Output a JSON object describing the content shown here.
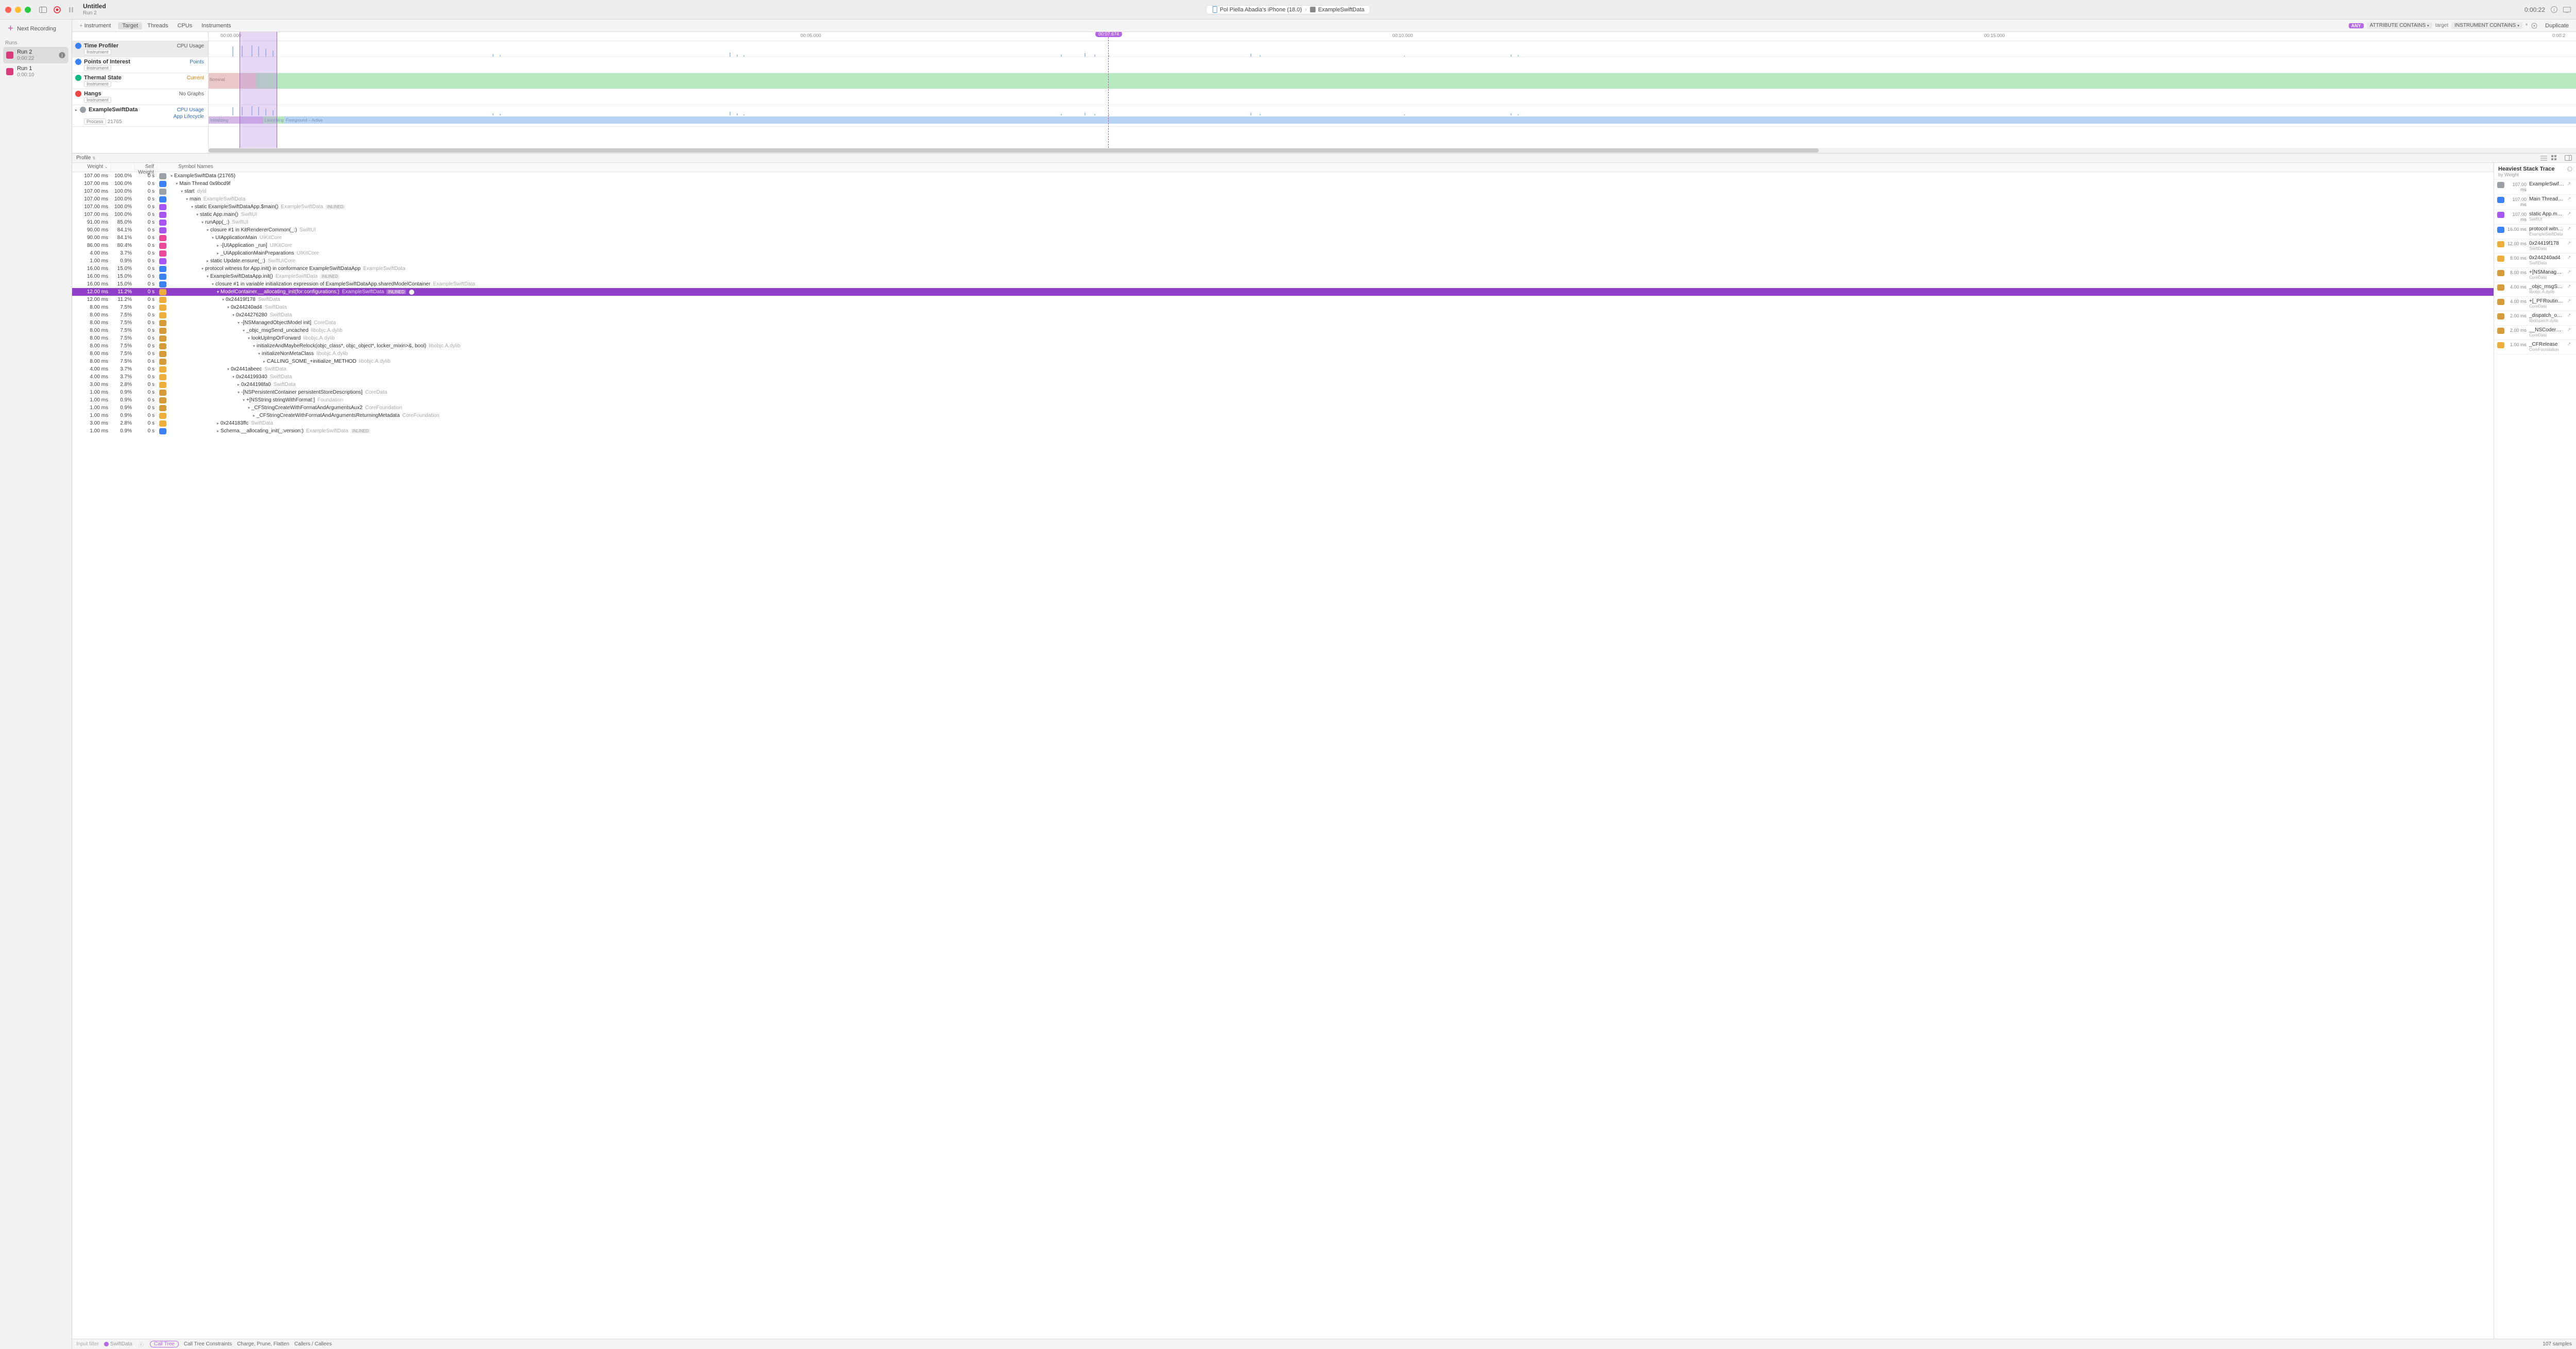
{
  "titlebar": {
    "title": "Untitled",
    "subtitle": "Run 2",
    "device": "Pol Piella Abadia's iPhone (18.0)",
    "process": "ExampleSwiftData",
    "elapsed": "0:00:22"
  },
  "sidebar": {
    "next_recording": "Next Recording",
    "runs_header": "Runs",
    "runs": [
      {
        "name": "Run 2",
        "duration": "0:00:22",
        "selected": true
      },
      {
        "name": "Run 1",
        "duration": "0:00:10",
        "selected": false
      }
    ],
    "chip_color": "#d83a7a"
  },
  "filterbar": {
    "add": "Instrument",
    "tabs": [
      "Target",
      "Threads",
      "CPUs",
      "Instruments"
    ],
    "active_tab": 0,
    "any": "ANY",
    "attr_contains": "ATTRIBUTE CONTAINS",
    "target_text": "target",
    "instr_contains": "INSTRUMENT CONTAINS",
    "duplicate": "Duplicate"
  },
  "timeline": {
    "ruler": [
      {
        "label": "00:00.000",
        "pct": 0.5
      },
      {
        "label": "00:05.000",
        "pct": 25
      },
      {
        "label": "00:10.000",
        "pct": 50
      },
      {
        "label": "00:15.000",
        "pct": 75
      },
      {
        "label": "0:00:2",
        "pct": 99
      }
    ],
    "selection": {
      "left_pct": 1.3,
      "width_pct": 1.6
    },
    "playhead": {
      "pct": 38,
      "label": "00:07.674"
    },
    "tracks": [
      {
        "kind": "profiler",
        "name": "Time Profiler",
        "tag": "Instrument",
        "right": "CPU Usage",
        "right_color": "#555",
        "selected": true,
        "height": 31,
        "bullet_bg": "#3b82f6",
        "bullet_fg": "#fff"
      },
      {
        "kind": "points",
        "name": "Points of Interest",
        "tag": "Instrument",
        "right": "Points",
        "right_color": "#2f6bd1",
        "height": 31,
        "bullet_bg": "#3b82f6",
        "bullet_fg": "#fff"
      },
      {
        "kind": "thermal",
        "name": "Thermal State",
        "tag": "Instrument",
        "right": "Current",
        "right_color": "#e27a00",
        "height": 31,
        "bullet_bg": "#10b981",
        "bullet_fg": "#fff"
      },
      {
        "kind": "hangs",
        "name": "Hangs",
        "tag": "Instrument",
        "right": "No Graphs",
        "right_color": "#555",
        "height": 31,
        "bullet_bg": "#ef4444",
        "bullet_fg": "#fff"
      },
      {
        "kind": "process",
        "name": "ExampleSwiftData",
        "tag": "Process",
        "pid": "21765",
        "right": "CPU Usage",
        "sub": "App Lifecycle",
        "right_color": "#2f6bd1",
        "height": 42,
        "bullet_bg": "#9aa0a6",
        "bullet_fg": "#fff"
      }
    ],
    "cpu_bars": [
      {
        "x": 1.0,
        "h": 90
      },
      {
        "x": 1.4,
        "h": 95
      },
      {
        "x": 1.8,
        "h": 98
      },
      {
        "x": 2.1,
        "h": 92
      },
      {
        "x": 2.4,
        "h": 70
      },
      {
        "x": 2.7,
        "h": 55
      },
      {
        "x": 12,
        "h": 22
      },
      {
        "x": 12.3,
        "h": 14
      },
      {
        "x": 22,
        "h": 38
      },
      {
        "x": 22.3,
        "h": 20
      },
      {
        "x": 22.6,
        "h": 12
      },
      {
        "x": 36,
        "h": 18
      },
      {
        "x": 37,
        "h": 30
      },
      {
        "x": 37.4,
        "h": 16
      },
      {
        "x": 38,
        "h": 12
      },
      {
        "x": 44,
        "h": 26
      },
      {
        "x": 44.4,
        "h": 14
      },
      {
        "x": 50.5,
        "h": 10
      },
      {
        "x": 55,
        "h": 20
      },
      {
        "x": 55.3,
        "h": 12
      }
    ],
    "lifecycle": [
      {
        "label": "Initializing",
        "left_pct": 0,
        "width_pct": 2.3,
        "bg": "#d4b8e8"
      },
      {
        "label": "Launching",
        "left_pct": 2.3,
        "width_pct": 0.9,
        "bg": "#b8e8c0"
      },
      {
        "label": "Foreground – Active",
        "left_pct": 3.2,
        "width_pct": 96.8,
        "bg": "#b8d4f3"
      }
    ],
    "thermal_label": "Nominal"
  },
  "profile_strip": {
    "label": "Profile"
  },
  "calltree": {
    "columns": [
      "Weight",
      "",
      "Self Weight",
      "",
      "Symbol Names"
    ],
    "selected_index": 15,
    "rows": [
      {
        "w": "107.00 ms",
        "p": "100.0%",
        "s": "0 s",
        "ic": "bg-gray",
        "ind": 0,
        "tri": "v",
        "sym": "ExampleSwiftData (21765)",
        "lib": ""
      },
      {
        "w": "107.00 ms",
        "p": "100.0%",
        "s": "0 s",
        "ic": "bg-blue",
        "ind": 1,
        "tri": "v",
        "sym": "Main Thread  0x9bcd9f",
        "lib": ""
      },
      {
        "w": "107.00 ms",
        "p": "100.0%",
        "s": "0 s",
        "ic": "bg-gray",
        "ind": 2,
        "tri": "v",
        "sym": "start",
        "lib": "dyld"
      },
      {
        "w": "107.00 ms",
        "p": "100.0%",
        "s": "0 s",
        "ic": "bg-blue",
        "ind": 3,
        "tri": "v",
        "sym": "main",
        "lib": "ExampleSwiftData"
      },
      {
        "w": "107.00 ms",
        "p": "100.0%",
        "s": "0 s",
        "ic": "bg-purple",
        "ind": 4,
        "tri": "v",
        "sym": "static ExampleSwiftDataApp.$main()",
        "lib": "ExampleSwiftData",
        "inl": true
      },
      {
        "w": "107.00 ms",
        "p": "100.0%",
        "s": "0 s",
        "ic": "bg-purple",
        "ind": 5,
        "tri": "v",
        "sym": "static App.main()",
        "lib": "SwiftUI"
      },
      {
        "w": "91.00 ms",
        "p": "85.0%",
        "s": "0 s",
        "ic": "bg-purple",
        "ind": 6,
        "tri": "v",
        "sym": "runApp<A>(_:)",
        "lib": "SwiftUI"
      },
      {
        "w": "90.00 ms",
        "p": "84.1%",
        "s": "0 s",
        "ic": "bg-purple",
        "ind": 7,
        "tri": "v",
        "sym": "closure #1 in KitRendererCommon(_:)",
        "lib": "SwiftUI"
      },
      {
        "w": "90.00 ms",
        "p": "84.1%",
        "s": "0 s",
        "ic": "bg-pink",
        "ind": 8,
        "tri": "v",
        "sym": "UIApplicationMain",
        "lib": "UIKitCore"
      },
      {
        "w": "86.00 ms",
        "p": "80.4%",
        "s": "0 s",
        "ic": "bg-pink",
        "ind": 9,
        "tri": ">",
        "sym": "-[UIApplication _run]",
        "lib": "UIKitCore"
      },
      {
        "w": "4.00 ms",
        "p": "3.7%",
        "s": "0 s",
        "ic": "bg-pink",
        "ind": 9,
        "tri": ">",
        "sym": "_UIApplicationMainPreparations",
        "lib": "UIKitCore"
      },
      {
        "w": "1.00 ms",
        "p": "0.9%",
        "s": "0 s",
        "ic": "bg-purple",
        "ind": 7,
        "tri": ">",
        "sym": "static Update.ensure<A>(_:)",
        "lib": "SwiftUICore"
      },
      {
        "w": "16.00 ms",
        "p": "15.0%",
        "s": "0 s",
        "ic": "bg-blue",
        "ind": 6,
        "tri": "v",
        "sym": "protocol witness for App.init() in conformance ExampleSwiftDataApp",
        "lib": "ExampleSwiftData"
      },
      {
        "w": "16.00 ms",
        "p": "15.0%",
        "s": "0 s",
        "ic": "bg-blue",
        "ind": 7,
        "tri": "v",
        "sym": "ExampleSwiftDataApp.init()",
        "lib": "ExampleSwiftData",
        "inl": true
      },
      {
        "w": "16.00 ms",
        "p": "15.0%",
        "s": "0 s",
        "ic": "bg-blue",
        "ind": 8,
        "tri": "v",
        "sym": "closure #1 in variable initialization expression of ExampleSwiftDataApp.sharedModelContainer",
        "lib": "ExampleSwiftData"
      },
      {
        "w": "12.00 ms",
        "p": "11.2%",
        "s": "0 s",
        "ic": "bg-orange",
        "ind": 9,
        "tri": "v",
        "sym": "ModelContainer.__allocating_init(for:configurations:)",
        "lib": "ExampleSwiftData",
        "inl": true,
        "focus": true
      },
      {
        "w": "12.00 ms",
        "p": "11.2%",
        "s": "0 s",
        "ic": "bg-orange",
        "ind": 10,
        "tri": "v",
        "sym": "0x24419f178",
        "lib": "SwiftData"
      },
      {
        "w": "8.00 ms",
        "p": "7.5%",
        "s": "0 s",
        "ic": "bg-orange",
        "ind": 11,
        "tri": "v",
        "sym": "0x244240ad4",
        "lib": "SwiftData"
      },
      {
        "w": "8.00 ms",
        "p": "7.5%",
        "s": "0 s",
        "ic": "bg-orange",
        "ind": 12,
        "tri": "v",
        "sym": "0x244276280",
        "lib": "SwiftData"
      },
      {
        "w": "8.00 ms",
        "p": "7.5%",
        "s": "0 s",
        "ic": "bg-amber",
        "ind": 13,
        "tri": "v",
        "sym": "-[NSManagedObjectModel init]",
        "lib": "CoreData"
      },
      {
        "w": "8.00 ms",
        "p": "7.5%",
        "s": "0 s",
        "ic": "bg-amber",
        "ind": 14,
        "tri": "v",
        "sym": "_objc_msgSend_uncached",
        "lib": "libobjc.A.dylib"
      },
      {
        "w": "8.00 ms",
        "p": "7.5%",
        "s": "0 s",
        "ic": "bg-amber",
        "ind": 15,
        "tri": "v",
        "sym": "lookUpImpOrForward",
        "lib": "libobjc.A.dylib"
      },
      {
        "w": "8.00 ms",
        "p": "7.5%",
        "s": "0 s",
        "ic": "bg-amber",
        "ind": 16,
        "tri": "v",
        "sym": "initializeAndMaybeRelock(objc_class*, objc_object*, locker_mixin<lockdebug::lock_mixin<objc_lock_base_t>>&, bool)",
        "lib": "libobjc.A.dylib"
      },
      {
        "w": "8.00 ms",
        "p": "7.5%",
        "s": "0 s",
        "ic": "bg-amber",
        "ind": 17,
        "tri": "v",
        "sym": "initializeNonMetaClass",
        "lib": "libobjc.A.dylib"
      },
      {
        "w": "8.00 ms",
        "p": "7.5%",
        "s": "0 s",
        "ic": "bg-amber",
        "ind": 18,
        "tri": ">",
        "sym": "CALLING_SOME_+initialize_METHOD",
        "lib": "libobjc.A.dylib"
      },
      {
        "w": "4.00 ms",
        "p": "3.7%",
        "s": "0 s",
        "ic": "bg-orange",
        "ind": 11,
        "tri": "v",
        "sym": "0x2441abeec",
        "lib": "SwiftData"
      },
      {
        "w": "4.00 ms",
        "p": "3.7%",
        "s": "0 s",
        "ic": "bg-orange",
        "ind": 12,
        "tri": "v",
        "sym": "0x244199340",
        "lib": "SwiftData"
      },
      {
        "w": "3.00 ms",
        "p": "2.8%",
        "s": "0 s",
        "ic": "bg-orange",
        "ind": 13,
        "tri": ">",
        "sym": "0x244198fa0",
        "lib": "SwiftData"
      },
      {
        "w": "1.00 ms",
        "p": "0.9%",
        "s": "0 s",
        "ic": "bg-amber",
        "ind": 13,
        "tri": "v",
        "sym": "-[NSPersistentContainer persistentStoreDescriptions]",
        "lib": "CoreData"
      },
      {
        "w": "1.00 ms",
        "p": "0.9%",
        "s": "0 s",
        "ic": "bg-amber",
        "ind": 14,
        "tri": "v",
        "sym": "+[NSString stringWithFormat:]",
        "lib": "Foundation"
      },
      {
        "w": "1.00 ms",
        "p": "0.9%",
        "s": "0 s",
        "ic": "bg-amber",
        "ind": 15,
        "tri": "v",
        "sym": "_CFStringCreateWithFormatAndArgumentsAux2",
        "lib": "CoreFoundation"
      },
      {
        "w": "1.00 ms",
        "p": "0.9%",
        "s": "0 s",
        "ic": "bg-orange",
        "ind": 16,
        "tri": ">",
        "sym": "_CFStringCreateWithFormatAndArgumentsReturningMetadata",
        "lib": "CoreFoundation"
      },
      {
        "w": "3.00 ms",
        "p": "2.8%",
        "s": "0 s",
        "ic": "bg-orange",
        "ind": 9,
        "tri": ">",
        "sym": "0x244183ffc",
        "lib": "SwiftData"
      },
      {
        "w": "1.00 ms",
        "p": "0.9%",
        "s": "0 s",
        "ic": "bg-blue",
        "ind": 9,
        "tri": ">",
        "sym": "Schema.__allocating_init(_:version:)",
        "lib": "ExampleSwiftData",
        "inl": true
      }
    ]
  },
  "hstack": {
    "title": "Heaviest Stack Trace",
    "subtitle": "by Weight",
    "items": [
      {
        "ms": "107.00 ms",
        "ic": "bg-gray",
        "name": "ExampleSwiftData (21765)",
        "lib": ""
      },
      {
        "ms": "107.00 ms",
        "ic": "bg-blue",
        "name": "Main Thread  0x9bcd9f",
        "lib": ""
      },
      {
        "ms": "107.00 ms",
        "ic": "bg-purple",
        "name": "static App.main()",
        "lib": "SwiftUI"
      },
      {
        "ms": "16.00 ms",
        "ic": "bg-blue",
        "name": "protocol witness for App...",
        "lib": "ExampleSwiftData"
      },
      {
        "ms": "12.00 ms",
        "ic": "bg-orange",
        "name": "0x24419f178",
        "lib": "SwiftData"
      },
      {
        "ms": "8.00 ms",
        "ic": "bg-orange",
        "name": "0x244240ad4",
        "lib": "SwiftData"
      },
      {
        "ms": "8.00 ms",
        "ic": "bg-amber",
        "name": "+[NSManagedObject...",
        "lib": "CoreData"
      },
      {
        "ms": "4.00 ms",
        "ic": "bg-amber",
        "name": "_objc_msgSend_uncach...",
        "lib": "libobjc.A.dylib"
      },
      {
        "ms": "4.00 ms",
        "ic": "bg-amber",
        "name": "+[_PFRoutines initiali...",
        "lib": "CoreData"
      },
      {
        "ms": "2.00 ms",
        "ic": "bg-amber",
        "name": "_dispatch_once_callout",
        "lib": "libdispatch.dylib"
      },
      {
        "ms": "2.00 ms",
        "ic": "bg-amber",
        "name": "__NSCoderEnforceF...",
        "lib": "CoreData"
      },
      {
        "ms": "1.00 ms",
        "ic": "bg-orange",
        "name": "_CFRelease",
        "lib": "CoreFoundation"
      }
    ]
  },
  "bottom": {
    "input_filter": "Input filter",
    "swiftdata": "SwiftData",
    "call_tree": "Call Tree",
    "constraints": "Call Tree Constraints",
    "charge": "Charge, Prune, Flatten",
    "callers": "Callers / Callees",
    "samples": "107 samples"
  }
}
